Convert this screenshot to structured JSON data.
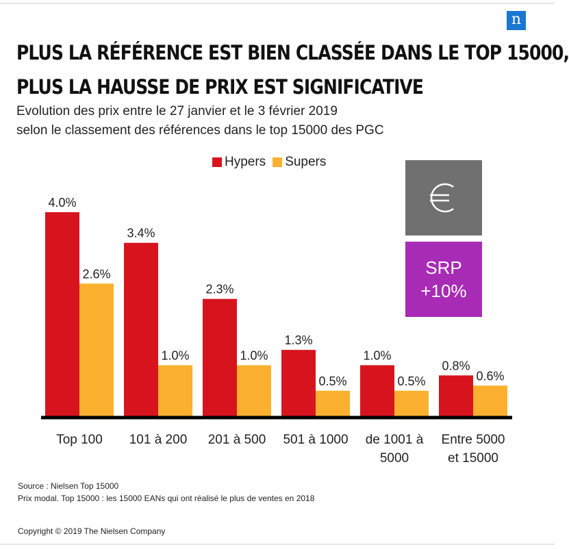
{
  "brand": {
    "logo_letter": "n",
    "logo_color": "#1976d2"
  },
  "title_line1": "PLUS LA RÉFÉRENCE EST BIEN CLASSÉE DANS LE TOP 15000,",
  "title_line2": "PLUS LA HAUSSE DE PRIX EST SIGNIFICATIVE",
  "subtitle_line1": "Evolution des prix entre le 27 janvier et le 3 février 2019",
  "subtitle_line2": "selon le classement des références dans le top 15000 des PGC",
  "badge": {
    "icon": "euro-icon",
    "srp_line1": "SRP",
    "srp_line2": "+10%",
    "icon_bg": "#707070",
    "srp_bg": "#a82bb5"
  },
  "chart_data": {
    "type": "bar",
    "categories": [
      [
        "Top 100"
      ],
      [
        "101 à 200"
      ],
      [
        "201 à 500"
      ],
      [
        "501 à 1000"
      ],
      [
        "de 1001 à",
        "5000"
      ],
      [
        "Entre 5000",
        "et 15000"
      ]
    ],
    "series": [
      {
        "name": "Hypers",
        "color": "#d7141e",
        "values": [
          4.0,
          3.4,
          2.3,
          1.3,
          1.0,
          0.8
        ],
        "labels": [
          "4.0%",
          "3.4%",
          "2.3%",
          "1.3%",
          "1.0%",
          "0.8%"
        ]
      },
      {
        "name": "Supers",
        "color": "#fbb12f",
        "values": [
          2.6,
          1.0,
          1.0,
          0.5,
          0.5,
          0.6
        ],
        "labels": [
          "2.6%",
          "1.0%",
          "1.0%",
          "0.5%",
          "0.5%",
          "0.6%"
        ]
      }
    ],
    "ylim": [
      0,
      4.0
    ],
    "legend_position": "top-center"
  },
  "source_line1": "Source : Nielsen  Top 15000",
  "source_line2": "Prix modal. Top 15000  : les 15000  EANs qui ont réalisé  le plus de ventes en 2018",
  "copyright": "Copyright © 2019 The Nielsen Company"
}
